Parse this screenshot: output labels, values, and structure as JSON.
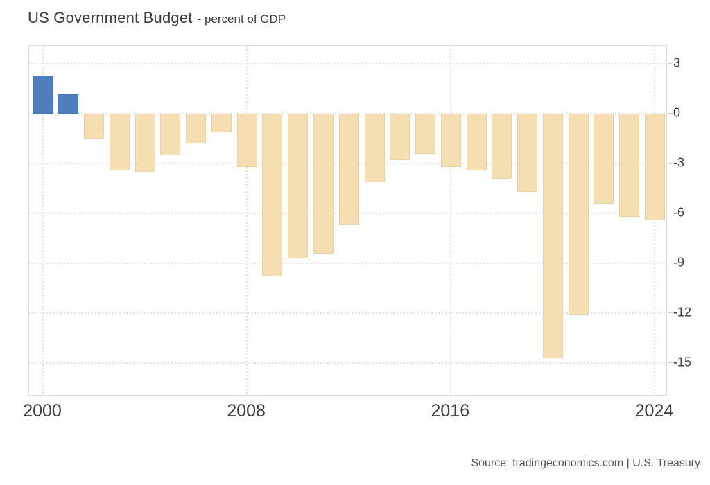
{
  "title": "US Government Budget",
  "subtitle": "- percent of GDP",
  "source": "Source: tradingeconomics.com | U.S. Treasury",
  "colors": {
    "positive_bar": "#4f7fbd",
    "negative_bar": "#f5deb1",
    "grid": "#e2e2e2",
    "plot_border": "#dcdcdc",
    "axis_text": "#3d3d3d",
    "source_text": "#555555"
  },
  "chart_data": {
    "type": "bar",
    "title": "US Government Budget - percent of GDP",
    "xlabel": "",
    "ylabel": "percent of GDP",
    "x": [
      2000,
      2001,
      2002,
      2003,
      2004,
      2005,
      2006,
      2007,
      2008,
      2009,
      2010,
      2011,
      2012,
      2013,
      2014,
      2015,
      2016,
      2017,
      2018,
      2019,
      2020,
      2021,
      2022,
      2023,
      2024
    ],
    "values": [
      2.3,
      1.2,
      -1.5,
      -3.4,
      -3.5,
      -2.5,
      -1.8,
      -1.1,
      -3.2,
      -9.8,
      -8.7,
      -8.4,
      -6.7,
      -4.1,
      -2.8,
      -2.4,
      -3.2,
      -3.4,
      -3.9,
      -4.7,
      -14.7,
      -12.1,
      -5.4,
      -6.2,
      -6.4
    ],
    "y_ticks": [
      3,
      0,
      -3,
      -6,
      -9,
      -12,
      -15
    ],
    "x_tick_years": [
      2000,
      2008,
      2016,
      2024
    ],
    "ylim": [
      -17.0,
      4.1
    ],
    "grid": "dotted",
    "legend": "none",
    "y_axis_side": "right",
    "x_axis_side": "bottom",
    "positive_color": "#4f7fbd",
    "negative_color": "#f5deb1"
  }
}
